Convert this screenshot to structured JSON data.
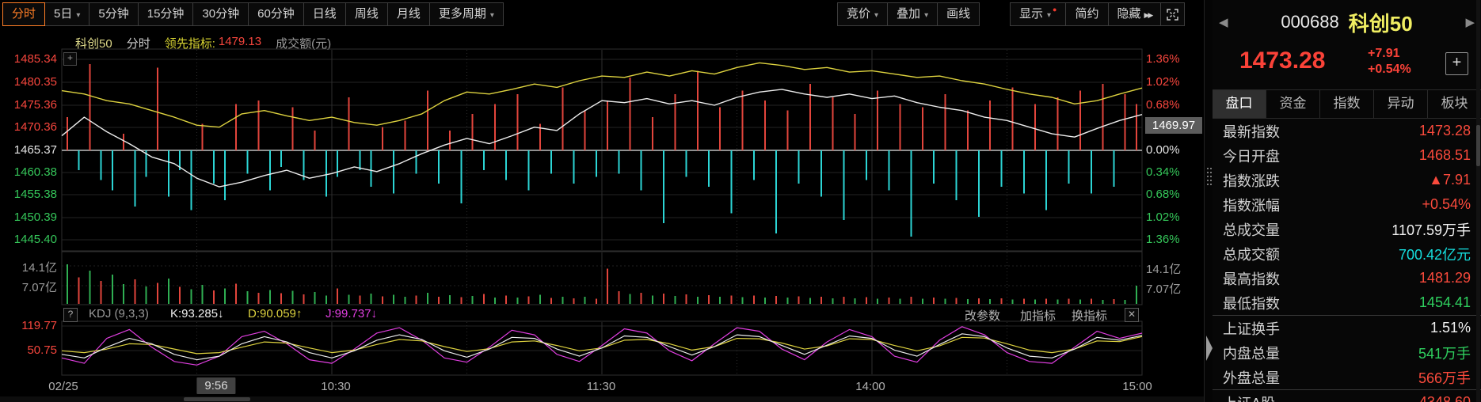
{
  "icons": {
    "caret_down": "▾",
    "prev_arrow": "◀",
    "next_arrow": "▶",
    "chevrons": "▶▶",
    "red_dot": "●",
    "plus": "+",
    "help": "?",
    "close": "✕"
  },
  "toolbar": {
    "periods": [
      {
        "label": "分时",
        "active": true
      },
      {
        "label": "5日",
        "caret": true
      },
      {
        "label": "5分钟"
      },
      {
        "label": "15分钟"
      },
      {
        "label": "30分钟"
      },
      {
        "label": "60分钟"
      },
      {
        "label": "日线"
      },
      {
        "label": "周线"
      },
      {
        "label": "月线"
      },
      {
        "label": "更多周期",
        "caret": true
      }
    ],
    "tools_left": [
      {
        "label": "竞价",
        "caret": true
      },
      {
        "label": "叠加",
        "caret": true
      },
      {
        "label": "画线"
      }
    ],
    "tools_right": [
      {
        "label": "显示",
        "caret": true,
        "dot": true
      },
      {
        "label": "简约"
      },
      {
        "label": "隐藏",
        "chevrons": true
      }
    ]
  },
  "legend": {
    "index_name": "科创50",
    "period": "分时",
    "lead_label": "领先指标:",
    "lead_value": "1479.13",
    "volume_label": "成交额(元)"
  },
  "axes": {
    "price_left": [
      {
        "t": "1485.34",
        "c": "ar"
      },
      {
        "t": "1480.35",
        "c": "ar"
      },
      {
        "t": "1475.36",
        "c": "ar"
      },
      {
        "t": "1470.36",
        "c": "ar"
      },
      {
        "t": "1465.37",
        "c": "aw"
      },
      {
        "t": "1460.38",
        "c": "ag"
      },
      {
        "t": "1455.38",
        "c": "ag"
      },
      {
        "t": "1450.39",
        "c": "ag"
      },
      {
        "t": "1445.40",
        "c": "ag"
      }
    ],
    "price_right": [
      {
        "t": "1.36%",
        "c": "ar"
      },
      {
        "t": "1.02%",
        "c": "ar"
      },
      {
        "t": "0.68%",
        "c": "ar"
      },
      {
        "t": "0.34%",
        "c": "ar"
      },
      {
        "t": "0.00%",
        "c": "aw"
      },
      {
        "t": "0.34%",
        "c": "ag"
      },
      {
        "t": "0.68%",
        "c": "ag"
      },
      {
        "t": "1.02%",
        "c": "ag"
      },
      {
        "t": "1.36%",
        "c": "ag"
      }
    ],
    "crosshair_price": "1469.97",
    "vol_left": [
      "14.1亿",
      "7.07亿"
    ],
    "vol_right": [
      "14.1亿",
      "7.07亿"
    ],
    "kdj_left": [
      "119.77",
      "50.75"
    ]
  },
  "kdj_legend": {
    "name": "KDJ (9,3,3)",
    "k": "K:93.285↓",
    "d": "D:90.059↑",
    "j": "J:99.737↓",
    "actions": [
      "改参数",
      "加指标",
      "换指标"
    ]
  },
  "time_axis": [
    {
      "t": "02/25"
    },
    {
      "t": "9:56",
      "boxed": true
    },
    {
      "t": "10:30"
    },
    {
      "t": "11:30"
    },
    {
      "t": "14:00"
    },
    {
      "t": "15:00"
    }
  ],
  "panel": {
    "nav": {
      "code": "000688",
      "name": "科创50"
    },
    "quote": {
      "last": "1473.28",
      "change": "+7.91",
      "change_pct": "+0.54%"
    },
    "tabs": [
      {
        "label": "盘口",
        "active": true
      },
      {
        "label": "资金"
      },
      {
        "label": "指数"
      },
      {
        "label": "异动"
      },
      {
        "label": "板块"
      }
    ],
    "rows": [
      {
        "label": "最新指数",
        "value": "1473.28",
        "c": "vr"
      },
      {
        "label": "今日开盘",
        "value": "1468.51",
        "c": "vr"
      },
      {
        "label": "指数涨跌",
        "value": "▲7.91",
        "c": "vr"
      },
      {
        "label": "指数涨幅",
        "value": "+0.54%",
        "c": "vr"
      },
      {
        "label": "总成交量",
        "value": "1107.59万手",
        "c": "vw"
      },
      {
        "label": "总成交额",
        "value": "700.42亿元",
        "c": "vc"
      },
      {
        "label": "最高指数",
        "value": "1481.29",
        "c": "vr"
      },
      {
        "label": "最低指数",
        "value": "1454.41",
        "c": "vg"
      },
      {
        "label": "上证换手",
        "value": "1.51%",
        "c": "vw",
        "divider": true
      },
      {
        "label": "内盘总量",
        "value": "541万手",
        "c": "vg"
      },
      {
        "label": "外盘总量",
        "value": "566万手",
        "c": "vr"
      },
      {
        "label": "上证A股",
        "value": "4348.60",
        "c": "vr",
        "divider": true
      }
    ]
  },
  "chart_data": [
    {
      "type": "line",
      "title": "科创50 分时 02/25",
      "baseline_prev_close": 1465.37,
      "ylim_pct": [
        -1.36,
        1.36
      ],
      "x_tick_labels": [
        "02/25",
        "9:56",
        "10:30",
        "11:30",
        "14:00",
        "15:00"
      ],
      "x_minutes_from_open": [
        0,
        5,
        10,
        15,
        20,
        25,
        30,
        35,
        40,
        45,
        50,
        55,
        60,
        65,
        70,
        75,
        80,
        85,
        90,
        95,
        100,
        105,
        110,
        115,
        120,
        125,
        130,
        135,
        140,
        145,
        150,
        155,
        160,
        165,
        170,
        175,
        180,
        185,
        190,
        195,
        200,
        205,
        210,
        215,
        220,
        225,
        230,
        235,
        240
      ],
      "series": [
        {
          "name": "科创50指数涨跌幅%",
          "color": "#ececec",
          "values": [
            0.22,
            0.5,
            0.28,
            0.1,
            -0.1,
            -0.2,
            -0.42,
            -0.55,
            -0.48,
            -0.38,
            -0.3,
            -0.42,
            -0.35,
            -0.25,
            -0.32,
            -0.2,
            -0.05,
            0.08,
            0.18,
            0.1,
            0.22,
            0.35,
            0.3,
            0.55,
            0.75,
            0.72,
            0.78,
            0.7,
            0.75,
            0.68,
            0.8,
            0.88,
            0.92,
            0.85,
            0.8,
            0.85,
            0.78,
            0.82,
            0.72,
            0.65,
            0.6,
            0.5,
            0.45,
            0.35,
            0.25,
            0.2,
            0.33,
            0.45,
            0.54
          ]
        },
        {
          "name": "领先指标涨跌幅%",
          "color": "#ddd23f",
          "values": [
            0.9,
            0.85,
            0.75,
            0.7,
            0.6,
            0.5,
            0.38,
            0.35,
            0.55,
            0.6,
            0.52,
            0.45,
            0.5,
            0.42,
            0.38,
            0.45,
            0.55,
            0.75,
            0.88,
            0.85,
            0.92,
            1.0,
            0.95,
            1.05,
            1.12,
            1.1,
            1.18,
            1.12,
            1.2,
            1.15,
            1.25,
            1.32,
            1.28,
            1.22,
            1.25,
            1.18,
            1.2,
            1.15,
            1.1,
            1.12,
            1.05,
            1.0,
            0.92,
            0.85,
            0.8,
            0.7,
            0.75,
            0.85,
            0.94
          ]
        }
      ]
    },
    {
      "type": "bar",
      "title": "领先指标多空柱 (正=红/多, 负=青/空, 单位%)",
      "values": [
        0.5,
        -0.3,
        1.3,
        -0.45,
        -0.6,
        0.25,
        -0.85,
        -0.4,
        1.25,
        -0.7,
        -0.3,
        -0.9,
        0.4,
        -0.5,
        -0.75,
        0.7,
        -0.35,
        0.75,
        -0.6,
        -0.25,
        0.65,
        -0.45,
        0.3,
        -0.7,
        -0.4,
        0.8,
        -0.3,
        -0.55,
        0.35,
        -0.65,
        0.45,
        -0.35,
        0.9,
        -0.5,
        0.3,
        -0.8,
        0.55,
        -0.3,
        0.7,
        -0.45,
        0.85,
        -0.6,
        0.4,
        -0.35,
        0.95,
        -0.5,
        0.6,
        -0.4,
        0.75,
        -0.35,
        1.1,
        -0.6,
        0.5,
        -1.1,
        0.85,
        -0.4,
        1.2,
        -0.55,
        0.65,
        -0.95,
        0.9,
        -0.45,
        0.75,
        -1.25,
        0.6,
        -0.5,
        1.0,
        -0.7,
        0.8,
        -1.05,
        0.55,
        -0.45,
        0.9,
        -0.6,
        0.7,
        -1.3,
        0.65,
        -0.5,
        0.85,
        -0.75,
        0.6,
        -1.0,
        0.75,
        -0.55,
        0.95,
        -0.65,
        0.7,
        -0.9,
        0.8,
        -0.5,
        0.9,
        -0.65,
        1.0,
        -0.55,
        0.85,
        0.7
      ]
    },
    {
      "type": "bar",
      "title": "成交额(元) (正=红, 负=绿, 单位亿)",
      "ylim": [
        0,
        14.1
      ],
      "values": [
        -14.1,
        9.5,
        -11.8,
        8.2,
        -10.5,
        -7.0,
        8.8,
        -6.2,
        7.5,
        -9.0,
        6.0,
        -5.2,
        -6.8,
        4.8,
        -5.5,
        7.2,
        -4.5,
        4.0,
        -5.0,
        3.8,
        -4.6,
        3.4,
        -4.2,
        -3.0,
        5.5,
        -3.2,
        2.9,
        -3.6,
        2.7,
        -3.3,
        -2.5,
        3.0,
        -4.0,
        2.6,
        -3.1,
        2.4,
        -2.8,
        3.5,
        -2.3,
        2.9,
        -2.2,
        2.7,
        -3.2,
        2.1,
        -2.6,
        2.0,
        -2.5,
        1.9,
        12.5,
        4.5,
        -3.5,
        4.0,
        -3.0,
        3.6,
        -2.8,
        3.4,
        -2.6,
        3.1,
        -2.5,
        3.0,
        -2.4,
        2.9,
        -2.3,
        2.8,
        -2.2,
        2.7,
        -2.1,
        2.6,
        -2.0,
        2.5,
        -2.0,
        2.4,
        -1.9,
        2.3,
        -1.9,
        2.6,
        -1.8,
        2.2,
        -1.8,
        2.1,
        -1.7,
        2.0,
        -1.7,
        2.0,
        -1.6,
        1.9,
        -1.6,
        1.9,
        -1.5,
        1.8,
        -1.5,
        1.8,
        -1.4,
        1.7,
        -1.4,
        -6.5
      ]
    },
    {
      "type": "line",
      "title": "KDJ (9,3,3)",
      "ylim": [
        0,
        125
      ],
      "gridlines": [
        119.77,
        50.75
      ],
      "series": [
        {
          "name": "K",
          "color": "#ececec",
          "values": [
            40,
            30,
            60,
            85,
            70,
            40,
            25,
            35,
            70,
            90,
            75,
            45,
            30,
            50,
            80,
            95,
            82,
            50,
            32,
            55,
            88,
            85,
            55,
            35,
            58,
            92,
            88,
            62,
            38,
            62,
            95,
            90,
            65,
            40,
            66,
            92,
            85,
            52,
            35,
            68,
            98,
            90,
            58,
            35,
            30,
            55,
            88,
            80,
            93.3
          ]
        },
        {
          "name": "D",
          "color": "#ddd23f",
          "values": [
            50,
            45,
            55,
            70,
            68,
            55,
            42,
            45,
            60,
            75,
            72,
            58,
            45,
            52,
            68,
            82,
            78,
            62,
            48,
            56,
            75,
            78,
            65,
            50,
            58,
            80,
            82,
            70,
            52,
            62,
            85,
            84,
            72,
            55,
            64,
            84,
            82,
            65,
            50,
            64,
            88,
            86,
            70,
            52,
            45,
            55,
            78,
            76,
            90.1
          ]
        },
        {
          "name": "J",
          "color": "#e03ee0",
          "values": [
            30,
            15,
            85,
            110,
            60,
            20,
            10,
            35,
            90,
            105,
            70,
            25,
            15,
            55,
            100,
            115,
            80,
            30,
            18,
            60,
            108,
            95,
            40,
            20,
            65,
            112,
            100,
            50,
            22,
            70,
            115,
            105,
            55,
            25,
            75,
            110,
            90,
            35,
            18,
            80,
            118,
            95,
            45,
            20,
            15,
            60,
            105,
            85,
            99.7
          ]
        }
      ]
    }
  ]
}
